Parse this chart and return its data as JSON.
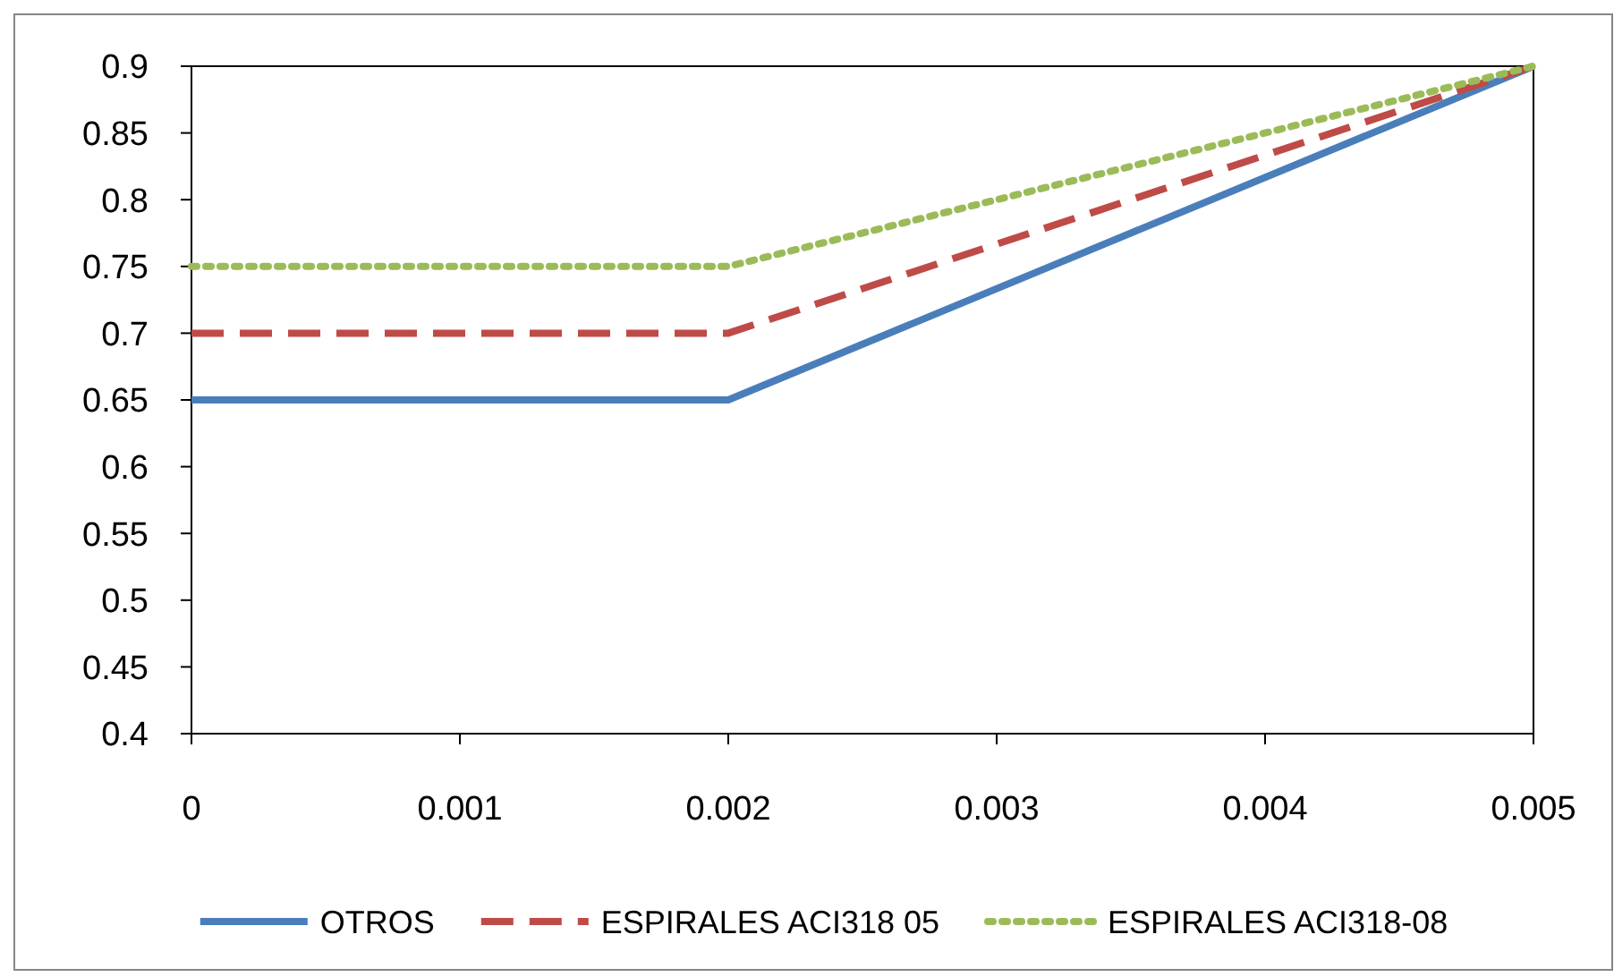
{
  "chart_data": {
    "type": "line",
    "x": [
      0,
      0.002,
      0.005
    ],
    "xlim": [
      0,
      0.005
    ],
    "xticks": [
      0,
      0.001,
      0.002,
      0.003,
      0.004,
      0.005
    ],
    "ylim": [
      0.4,
      0.9
    ],
    "yticks": [
      0.4,
      0.45,
      0.5,
      0.55,
      0.6,
      0.65,
      0.7,
      0.75,
      0.8,
      0.85,
      0.9
    ],
    "grid": false,
    "legend": "bottom",
    "marker": "none",
    "series": [
      {
        "name": "OTROS",
        "color": "#4a7ebb",
        "values": [
          0.65,
          0.65,
          0.9
        ],
        "line_style": "solid"
      },
      {
        "name": "ESPIRALES ACI318 05",
        "color": "#be4b48",
        "values": [
          0.7,
          0.7,
          0.9
        ],
        "line_style": "dashed"
      },
      {
        "name": "ESPIRALES ACI318-08",
        "color": "#9bbb59",
        "values": [
          0.75,
          0.75,
          0.9
        ],
        "line_style": "dotted"
      }
    ]
  }
}
